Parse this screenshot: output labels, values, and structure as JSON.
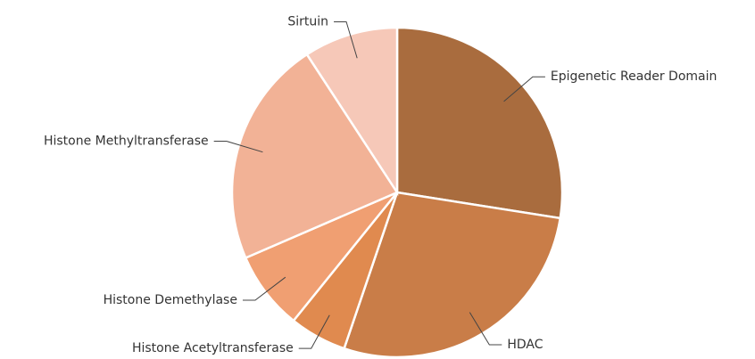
{
  "chart_data": {
    "type": "pie",
    "categories": [
      "Epigenetic Reader Domain",
      "HDAC",
      "Histone Acetyltransferase",
      "Histone Demethylase",
      "Histone Methyltransferase",
      "Sirtuin"
    ],
    "values": [
      27.5,
      27.7,
      5.6,
      7.7,
      22.3,
      9.2
    ],
    "colors": [
      "#a96c3e",
      "#c97d48",
      "#e08a4f",
      "#f09f72",
      "#f2b296",
      "#f6c8b8"
    ]
  }
}
